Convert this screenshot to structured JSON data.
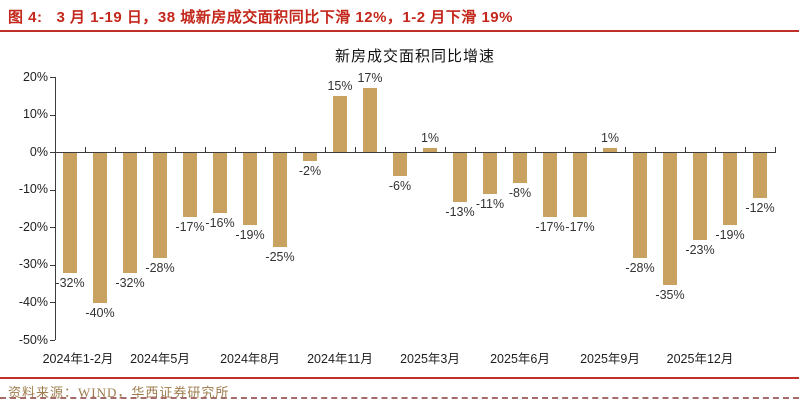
{
  "header": {
    "caption_prefix": "图 4:",
    "caption_text": "3 月 1-19 日，38 城新房成交面积同比下滑 12%，1-2 月下滑 19%"
  },
  "chart_data": {
    "type": "bar",
    "title": "新房成交面积同比增速",
    "values": [
      -32,
      -40,
      -32,
      -28,
      -17,
      -16,
      -19,
      -25,
      -2,
      15,
      17,
      -6,
      1,
      -13,
      -11,
      -8,
      -17,
      -17,
      1,
      -28,
      -35,
      -23,
      -19,
      -12
    ],
    "data_labels": [
      "-32%",
      "-40%",
      "-32%",
      "-28%",
      "-17%",
      "-16%",
      "-19%",
      "-25%",
      "-2%",
      "15%",
      "17%",
      "-6%",
      "1%",
      "-13%",
      "-11%",
      "-8%",
      "-17%",
      "-17%",
      "1%",
      "-28%",
      "-35%",
      "-23%",
      "-19%",
      "-12%"
    ],
    "x_tick_labels": [
      "2024年1-2月",
      "2024年5月",
      "2024年8月",
      "2024年11月",
      "2025年3月",
      "2025年6月",
      "2025年9月",
      "2025年12月"
    ],
    "x_tick_indices": [
      0,
      3,
      6,
      9,
      12,
      15,
      18,
      21
    ],
    "y_tick_labels": [
      "20%",
      "10%",
      "0%",
      "-10%",
      "-20%",
      "-30%",
      "-40%",
      "-50%"
    ],
    "ylim": [
      -50,
      20
    ],
    "y_step": 10,
    "grid": false,
    "legend_position": "none",
    "bar_color": "#C9A262"
  },
  "footer": {
    "source": "资料来源：WIND，华西证券研究所"
  },
  "colors": {
    "accent_red": "#C4271B",
    "rule_red": "#BF3029",
    "bar": "#C9A262",
    "source_text": "#9F7C4C",
    "axis": "#3c3c3c",
    "label": "#333333"
  }
}
